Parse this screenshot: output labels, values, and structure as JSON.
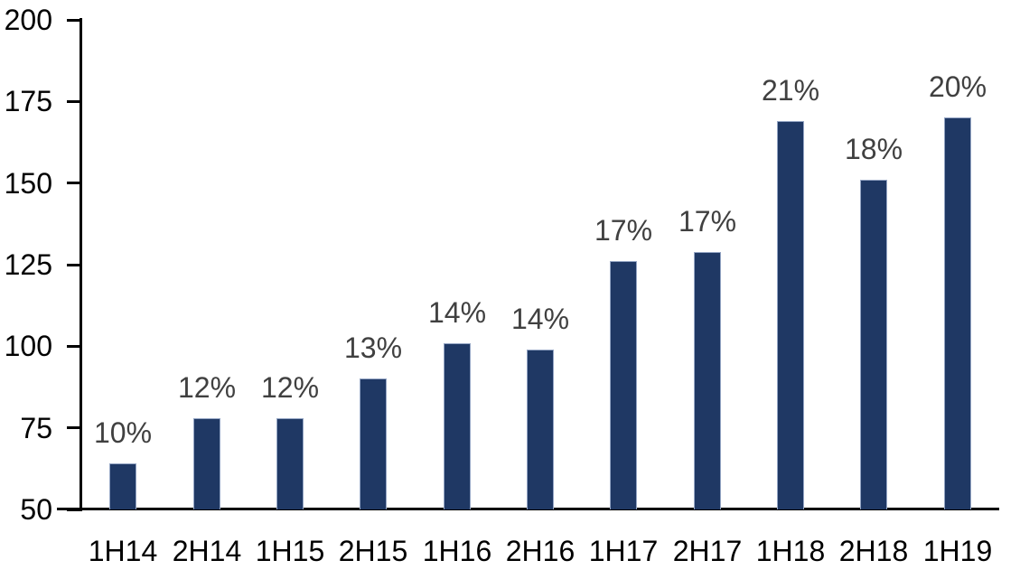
{
  "chart_data": {
    "type": "bar",
    "title": "",
    "xlabel": "",
    "ylabel": "",
    "categories": [
      "1H14",
      "2H14",
      "1H15",
      "2H15",
      "1H16",
      "2H16",
      "1H17",
      "2H17",
      "1H18",
      "2H18",
      "1H19"
    ],
    "values": [
      64,
      78,
      78,
      90,
      101,
      99,
      126,
      129,
      169,
      151,
      170
    ],
    "bar_labels": [
      "10%",
      "12%",
      "12%",
      "13%",
      "14%",
      "14%",
      "17%",
      "17%",
      "21%",
      "18%",
      "20%"
    ],
    "y_ticks": [
      50,
      75,
      100,
      125,
      150,
      175,
      200
    ],
    "ylim": [
      50,
      200
    ],
    "grid": false,
    "legend": false,
    "colors": {
      "bar_fill": "#1F3864",
      "bar_border": "#94A5C4",
      "data_label": "#404040",
      "axis_line": "#000000",
      "tick_label": "#000000",
      "background": "#FFFFFF"
    }
  }
}
